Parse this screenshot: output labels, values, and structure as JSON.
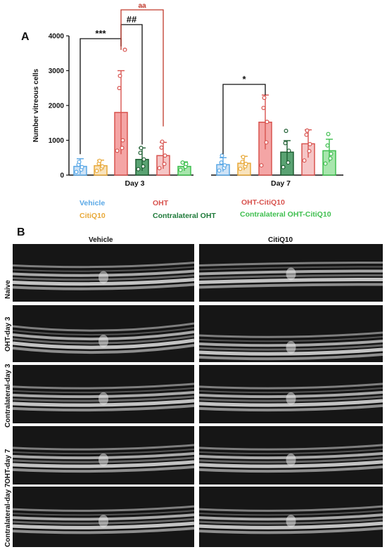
{
  "panel_a": {
    "letter": "A"
  },
  "panel_b": {
    "letter": "B",
    "col_titles": [
      "Vehicle",
      "CitiQ10"
    ],
    "row_labels": [
      "Naive",
      "OHT-day 3",
      "Contralateral-day 3",
      "OHT-day 7",
      "Contralateral-day 7"
    ]
  },
  "legend": [
    {
      "label": "Vehicle",
      "color": "#5aa8e6"
    },
    {
      "label": "CitiQ10",
      "color": "#e8a93a"
    },
    {
      "label": "OHT",
      "color": "#d8534f"
    },
    {
      "label": "Contralateral OHT",
      "color": "#1f7a3a"
    },
    {
      "label": "OHT-CitiQ10",
      "color": "#d8534f"
    },
    {
      "label": "Contralateral OHT-CitiQ10",
      "color": "#3fbf4f"
    }
  ],
  "chart_data": {
    "type": "bar",
    "ylabel": "Number vitreous cells",
    "ylim": [
      0,
      4000
    ],
    "yticks": [
      "0",
      "1000",
      "2000",
      "3000",
      "4000"
    ],
    "groups": [
      {
        "name": "Day 3",
        "bars": [
          {
            "mean": 250,
            "sd": 220,
            "points": [
              90,
              160,
              230,
              300,
              380
            ]
          },
          {
            "mean": 270,
            "sd": 160,
            "points": [
              120,
              200,
              250,
              330,
              410
            ]
          },
          {
            "mean": 1800,
            "sd": 1200,
            "points": [
              700,
              780,
              1000,
              2500,
              2850,
              3600
            ]
          },
          {
            "mean": 450,
            "sd": 330,
            "points": [
              170,
              250,
              450,
              640,
              780
            ]
          },
          {
            "mean": 560,
            "sd": 380,
            "points": [
              200,
              320,
              560,
              790,
              960
            ]
          },
          {
            "mean": 250,
            "sd": 130,
            "points": [
              150,
              240,
              320,
              360
            ]
          }
        ],
        "annotations": [
          {
            "text": "***",
            "from": 0,
            "to": 2,
            "color": "#111111"
          },
          {
            "text": "##",
            "from": 2,
            "to": 3,
            "color": "#111111"
          },
          {
            "text": "aa",
            "from": 2,
            "to": 4,
            "color": "#c0392b"
          }
        ]
      },
      {
        "name": "Day 7",
        "bars": [
          {
            "mean": 300,
            "sd": 200,
            "points": [
              130,
              210,
              280,
              360,
              560
            ]
          },
          {
            "mean": 340,
            "sd": 200,
            "points": [
              180,
              250,
              320,
              380,
              520
            ]
          },
          {
            "mean": 1520,
            "sd": 780,
            "points": [
              280,
              940,
              1530,
              1930,
              2220
            ]
          },
          {
            "mean": 660,
            "sd": 330,
            "points": [
              230,
              360,
              700,
              920,
              1270
            ]
          },
          {
            "mean": 900,
            "sd": 400,
            "points": [
              420,
              690,
              890,
              1160,
              1280
            ]
          },
          {
            "mean": 700,
            "sd": 330,
            "points": [
              330,
              480,
              610,
              850,
              1180
            ]
          }
        ],
        "annotations": [
          {
            "text": "*",
            "from": 0,
            "to": 2,
            "color": "#111111"
          }
        ]
      }
    ],
    "series_fill": [
      "#cfe3f6",
      "#f8e3bd",
      "#f4a5a5",
      "#5aa373",
      "#f5c6c6",
      "#a8e6ad"
    ],
    "series_stroke": [
      "#5aa8e6",
      "#e8a93a",
      "#d8534f",
      "#1f5f33",
      "#d8534f",
      "#3fbf4f"
    ]
  }
}
